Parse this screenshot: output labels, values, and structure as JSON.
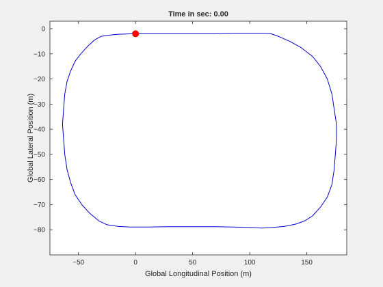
{
  "colors": {
    "figure_bg": "#f0f0f0",
    "axes_bg": "#ffffff",
    "axis": "#262626",
    "line": "#0000cd",
    "marker": "#ff0000"
  },
  "chart_data": {
    "type": "line",
    "title": "Time in sec: 0.00",
    "xlabel": "Global Longitudinal Position (m)",
    "ylabel": "Global Lateral Position (m)",
    "xlim": [
      -75,
      185
    ],
    "ylim": [
      -90,
      3
    ],
    "xticks": [
      -50,
      0,
      50,
      100,
      150
    ],
    "yticks": [
      0,
      -10,
      -20,
      -30,
      -40,
      -50,
      -60,
      -70,
      -80
    ],
    "grid": false,
    "series": [
      {
        "x": [
          0,
          20,
          40,
          60,
          70,
          85,
          100,
          110,
          118,
          125,
          135,
          145,
          155,
          162,
          168,
          172,
          174,
          176,
          176,
          175,
          174,
          172,
          168,
          162,
          155,
          148,
          140,
          130,
          120,
          110,
          100,
          85,
          70,
          50,
          30,
          10,
          -5,
          -15,
          -25,
          -32,
          -40,
          -47,
          -53,
          -57,
          -60,
          -62,
          -63,
          -64,
          -63,
          -62,
          -60,
          -57,
          -53,
          -48,
          -42,
          -36,
          -30,
          -22,
          -15,
          -8,
          -3,
          0
        ],
        "y": [
          -2,
          -2,
          -2,
          -2,
          -2,
          -1.8,
          -1.8,
          -1.8,
          -1.9,
          -3,
          -5,
          -7.5,
          -11,
          -15,
          -20,
          -26,
          -32,
          -38,
          -44,
          -50,
          -56,
          -62,
          -67,
          -71,
          -74.5,
          -76.5,
          -77.8,
          -78.7,
          -79.1,
          -79.3,
          -79.1,
          -78.9,
          -78.8,
          -78.8,
          -78.8,
          -78.9,
          -78.9,
          -78.7,
          -78,
          -76.5,
          -73.5,
          -70,
          -66,
          -61,
          -56,
          -50,
          -44,
          -38,
          -32,
          -26,
          -21,
          -17,
          -13,
          -10,
          -7,
          -4.5,
          -3,
          -2.5,
          -2.2,
          -2.1,
          -2,
          -2
        ]
      }
    ],
    "marker": {
      "x": 0,
      "y": -2
    }
  }
}
